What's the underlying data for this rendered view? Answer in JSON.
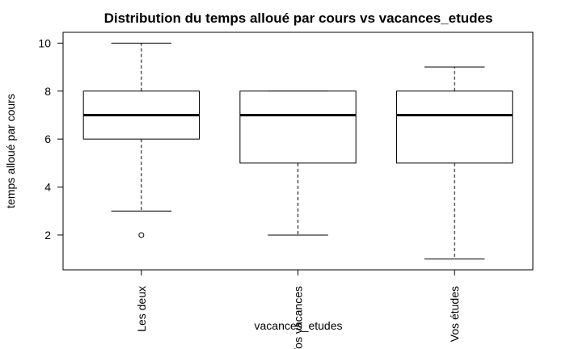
{
  "chart_data": {
    "type": "box",
    "title": "Distribution du temps alloué par cours vs vacances_etudes",
    "xlabel": "vacances_etudes",
    "ylabel": "temps alloué par cours",
    "ylim": [
      0.55,
      10.45
    ],
    "yticks": [
      2,
      4,
      6,
      8,
      10
    ],
    "categories": [
      "Les deux",
      "Vos vacances",
      "Vos études"
    ],
    "boxes": [
      {
        "category": "Les deux",
        "whisker_low": 3,
        "q1": 6,
        "median": 7,
        "q3": 8,
        "whisker_high": 10,
        "outliers": [
          2
        ]
      },
      {
        "category": "Vos vacances",
        "whisker_low": 2,
        "q1": 5,
        "median": 7,
        "q3": 8,
        "whisker_high": 8,
        "outliers": []
      },
      {
        "category": "Vos études",
        "whisker_low": 1,
        "q1": 5,
        "median": 7,
        "q3": 8,
        "whisker_high": 9,
        "outliers": []
      }
    ],
    "grid": false,
    "legend": "none"
  }
}
